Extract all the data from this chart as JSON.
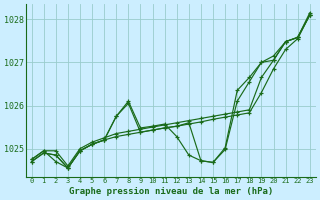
{
  "title": "Graphe pression niveau de la mer (hPa)",
  "background_color": "#cceeff",
  "grid_color": "#99cccc",
  "line_color": "#1a6b1a",
  "xlim": [
    -0.5,
    23.5
  ],
  "ylim": [
    1024.35,
    1028.35
  ],
  "yticks": [
    1025,
    1026,
    1027,
    1028
  ],
  "xtick_labels": [
    "0",
    "1",
    "2",
    "3",
    "4",
    "5",
    "6",
    "7",
    "8",
    "9",
    "10",
    "11",
    "12",
    "13",
    "14",
    "15",
    "16",
    "17",
    "18",
    "19",
    "20",
    "21",
    "22",
    "23"
  ],
  "series": [
    [
      1024.7,
      1024.9,
      1024.85,
      1024.55,
      1024.95,
      1025.1,
      1025.2,
      1025.28,
      1025.33,
      1025.38,
      1025.43,
      1025.48,
      1025.52,
      1025.57,
      1025.62,
      1025.68,
      1025.73,
      1025.78,
      1025.83,
      1026.3,
      1026.85,
      1027.3,
      1027.55,
      1028.1
    ],
    [
      1024.75,
      1024.95,
      1024.7,
      1024.55,
      1024.95,
      1025.1,
      1025.2,
      1025.75,
      1026.1,
      1025.48,
      1025.52,
      1025.57,
      1025.28,
      1024.85,
      1024.72,
      1024.68,
      1024.98,
      1026.1,
      1026.55,
      1027.0,
      1027.05,
      1027.48,
      1027.58,
      1028.1
    ],
    [
      1024.7,
      1024.9,
      1024.85,
      1024.55,
      1024.95,
      1025.1,
      1025.2,
      1025.75,
      1026.05,
      1025.38,
      1025.43,
      1025.48,
      1025.52,
      1025.6,
      1024.72,
      1024.68,
      1025.02,
      1026.35,
      1026.65,
      1027.0,
      1027.15,
      1027.48,
      1027.58,
      1028.1
    ],
    [
      1024.75,
      1024.95,
      1024.95,
      1024.6,
      1025.0,
      1025.15,
      1025.25,
      1025.35,
      1025.4,
      1025.45,
      1025.5,
      1025.55,
      1025.6,
      1025.65,
      1025.7,
      1025.75,
      1025.8,
      1025.85,
      1025.9,
      1026.65,
      1027.05,
      1027.48,
      1027.58,
      1028.15
    ]
  ]
}
